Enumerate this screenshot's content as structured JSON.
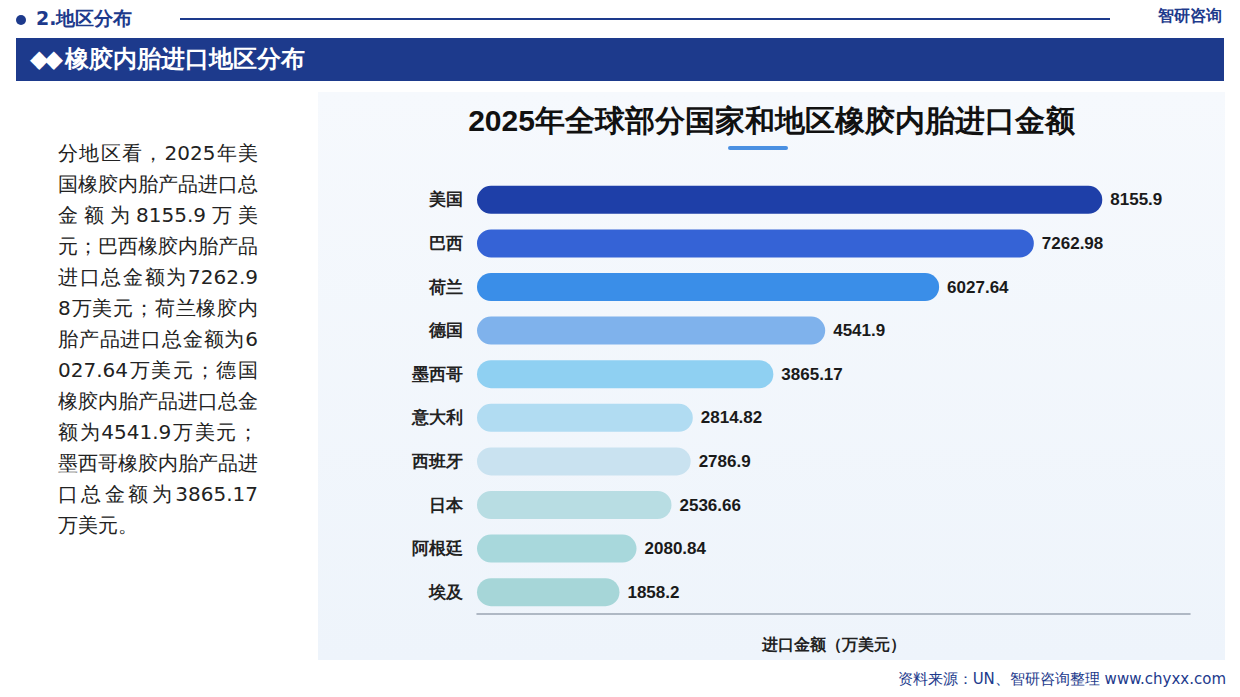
{
  "page": {
    "section": "2.地区分布",
    "brand": "智研咨询",
    "banner": "橡胶内胎进口地区分布",
    "paragraph": "分地区看，2025年美国橡胶内胎产品进口总金额为8155.9万美元；巴西橡胶内胎产品进口总金额为7262.98万美元；荷兰橡胶内胎产品进口总金额为6027.64万美元；德国橡胶内胎产品进口总金额为4541.9万美元；墨西哥橡胶内胎产品进口总金额为3865.17万美元。",
    "source": "资料来源：UN、智研咨询整理 www.chyxx.com"
  },
  "chart_data": {
    "type": "bar",
    "title": "2025年全球部分国家和地区橡胶内胎进口金额",
    "orientation": "horizontal",
    "categories": [
      "美国",
      "巴西",
      "荷兰",
      "德国",
      "墨西哥",
      "意大利",
      "西班牙",
      "日本",
      "阿根廷",
      "埃及"
    ],
    "values": [
      8155.9,
      7262.98,
      6027.64,
      4541.9,
      3865.17,
      2814.82,
      2786.9,
      2536.66,
      2080.84,
      1858.2
    ],
    "colors": [
      "#1e3fa8",
      "#3563d6",
      "#3a8ee8",
      "#7fb2ec",
      "#8fd0f2",
      "#b1dcf2",
      "#c9e2f0",
      "#b8dde3",
      "#a8d8dc",
      "#a6d6d8"
    ],
    "x_label": "进口金额（万美元）",
    "xlim": [
      0,
      9300
    ],
    "data_labels": true,
    "tick_labels": "y",
    "grid": false
  }
}
